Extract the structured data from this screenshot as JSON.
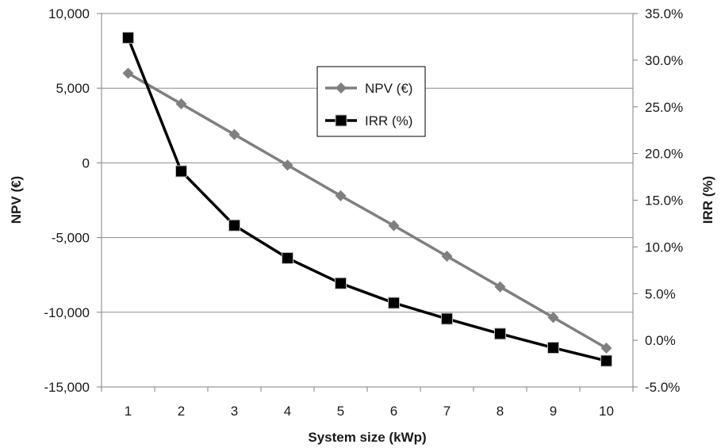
{
  "chart_data": {
    "type": "line",
    "xlabel": "System size (kWp)",
    "ylabel": "NPV (€)",
    "y2label": "IRR (%)",
    "categories": [
      1,
      2,
      3,
      4,
      5,
      6,
      7,
      8,
      9,
      10
    ],
    "ylim": [
      -15000,
      10000
    ],
    "y_ticks": [
      "10,000",
      "5,000",
      "0",
      "-5,000",
      "-10,000",
      "-15,000"
    ],
    "y_tick_values": [
      10000,
      5000,
      0,
      -5000,
      -10000,
      -15000
    ],
    "y2lim": [
      -5.0,
      35.0
    ],
    "y2_ticks": [
      "35.0%",
      "30.0%",
      "25.0%",
      "20.0%",
      "15.0%",
      "10.0%",
      "5.0%",
      "0.0%",
      "-5.0%"
    ],
    "y2_tick_values": [
      35,
      30,
      25,
      20,
      15,
      10,
      5,
      0,
      -5
    ],
    "grid": true,
    "legend_position": "top-center",
    "series": [
      {
        "name": "NPV (€)",
        "axis": "left",
        "marker": "diamond",
        "color": "#7f7f7f",
        "values": [
          6000,
          3950,
          1900,
          -150,
          -2200,
          -4200,
          -6250,
          -8300,
          -10350,
          -12400
        ]
      },
      {
        "name": "IRR (%)",
        "axis": "right",
        "marker": "square",
        "color": "#000000",
        "values": [
          32.4,
          18.1,
          12.3,
          8.8,
          6.1,
          4.0,
          2.3,
          0.7,
          -0.8,
          -2.2
        ]
      }
    ]
  }
}
